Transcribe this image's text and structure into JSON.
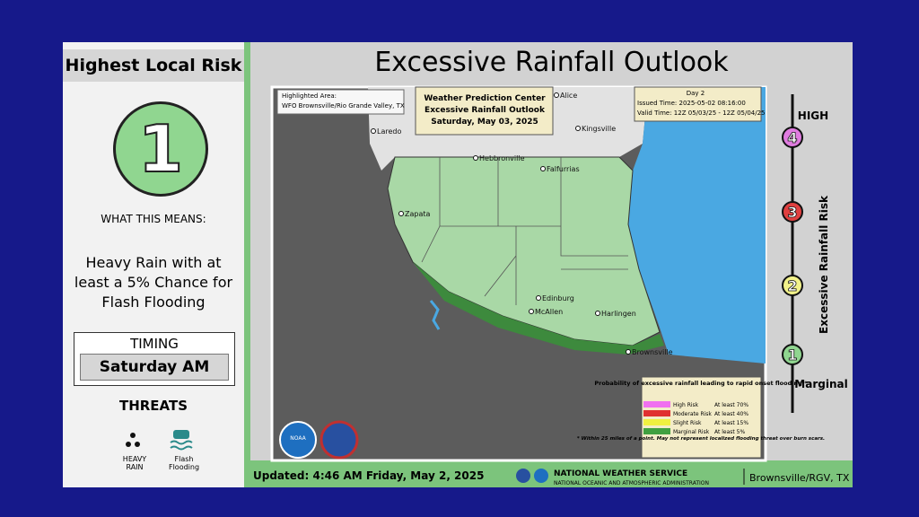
{
  "sidebar": {
    "title": "Highest Local Risk",
    "risk_level": "1",
    "what_this_means": "WHAT THIS MEANS:",
    "description": "Heavy Rain with at least a 5% Chance for Flash Flooding",
    "timing_label": "TIMING",
    "timing_value": "Saturday AM",
    "threats_label": "THREATS",
    "threats": [
      "HEAVY RAIN",
      "Flash Flooding"
    ]
  },
  "header": {
    "title": "Excessive Rainfall Outlook"
  },
  "map": {
    "highlighted_area_label": "Highlighted Area:",
    "highlighted_area": "WFO Brownsville/Rio Grande Valley, TX",
    "center_box": [
      "Weather Prediction Center",
      "Excessive Rainfall Outlook",
      "Saturday, May 03, 2025"
    ],
    "day": "Day 2",
    "issued": "Issued Time: 2025-05-02 08:16:00",
    "valid": "Valid Time: 12Z 05/03/25 - 12Z 05/04/25",
    "places": [
      "Laredo",
      "Alice",
      "Kingsville",
      "Hebbronville",
      "Falfurrias",
      "Zapata",
      "Edinburg",
      "McAllen",
      "Harlingen",
      "Brownsville"
    ],
    "logo": "NOAA",
    "legend": {
      "title": "Probability of excessive rainfall leading to rapid onset flooding.*",
      "rows": [
        [
          "High Risk",
          "At least 70%"
        ],
        [
          "Moderate Risk",
          "At least 40%"
        ],
        [
          "Slight Risk",
          "At least 15%"
        ],
        [
          "Marginal Risk",
          "At least  5%"
        ]
      ],
      "note": "* Within 25 miles of a point. May not represent localized flooding threat over burn scars."
    }
  },
  "risk_scale": {
    "axis_label": "Excessive Rainfall Risk",
    "top_label": "HIGH",
    "bottom_label": "Marginal",
    "levels": [
      "4",
      "3",
      "2",
      "1"
    ]
  },
  "footer": {
    "updated": "Updated: 4:46 AM Friday, May 2, 2025",
    "agency": "NATIONAL WEATHER SERVICE",
    "parent_agency": "NATIONAL OCEANIC AND ATMOSPHERIC ADMINISTRATION",
    "office": "Brownsville/RGV, TX"
  }
}
